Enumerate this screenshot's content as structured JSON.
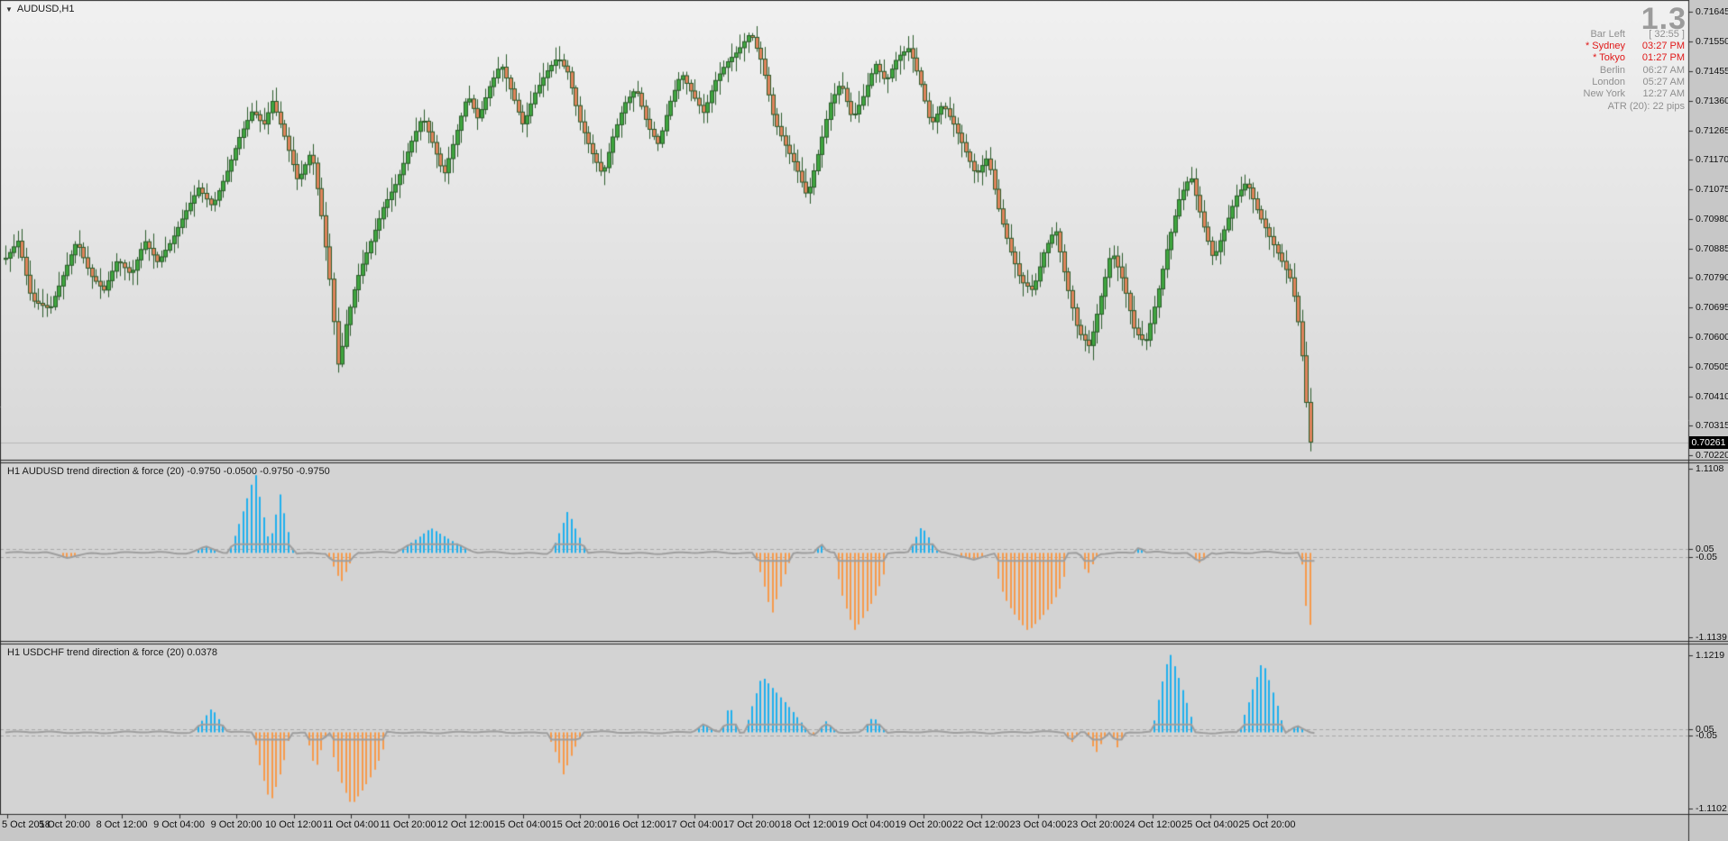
{
  "window": {
    "symbol_label": "AUDUSD,H1",
    "dropdown_icon": "▼"
  },
  "main": {
    "watermark": "1.3"
  },
  "info": {
    "rows": [
      {
        "label": "Bar Left",
        "value": "[ 32:55 ]",
        "highlight": false
      },
      {
        "label": "* Sydney",
        "value": "03:27 PM",
        "highlight": true
      },
      {
        "label": "* Tokyo",
        "value": "01:27 PM",
        "highlight": true
      },
      {
        "label": "Berlin",
        "value": "06:27 AM",
        "highlight": false
      },
      {
        "label": "London",
        "value": "05:27 AM",
        "highlight": false
      },
      {
        "label": "New York",
        "value": "12:27 AM",
        "highlight": false
      }
    ],
    "atr": "ATR (20): 22 pips"
  },
  "time_axis": {
    "labels": [
      "5 Oct 2018",
      "5 Oct 20:00",
      "8 Oct 12:00",
      "9 Oct 04:00",
      "9 Oct 20:00",
      "10 Oct 12:00",
      "11 Oct 04:00",
      "11 Oct 20:00",
      "12 Oct 12:00",
      "15 Oct 04:00",
      "15 Oct 20:00",
      "16 Oct 12:00",
      "17 Oct 04:00",
      "17 Oct 20:00",
      "18 Oct 12:00",
      "19 Oct 04:00",
      "19 Oct 20:00",
      "22 Oct 12:00",
      "23 Oct 04:00",
      "23 Oct 20:00",
      "24 Oct 12:00",
      "25 Oct 04:00",
      "25 Oct 20:00"
    ]
  },
  "colors": {
    "axis_bg": "#c7c7c7",
    "pane_bg": "#d3d3d3",
    "main_bg_top": "#f1f1f1",
    "main_bg_bottom": "#d8d8d8",
    "candle_up": "#3fa53f",
    "candle_down": "#e0845c",
    "candle_outline": "#2b5b2b",
    "hist_pos": "#1fb0ee",
    "hist_neg": "#f79a4b",
    "signal": "#9e9e9e",
    "dashed": "#a8a8a8",
    "text": "#111111",
    "info_text": "#8f8f8f",
    "info_highlight": "#e01818",
    "watermark": "#9b9b9b",
    "border": "#2b2b2b",
    "price_line": "#b8b8b8",
    "badge_bg": "#000000",
    "badge_text": "#ffffff"
  },
  "chart_data": [
    {
      "type": "candlestick",
      "symbol": "AUDUSD",
      "timeframe": "H1",
      "ylim": [
        0.70206,
        0.71684
      ],
      "price_ticks": [
        "0.71645",
        "0.71550",
        "0.71455",
        "0.71360",
        "0.71265",
        "0.71170",
        "0.71075",
        "0.70980",
        "0.70885",
        "0.70790",
        "0.70695",
        "0.70600",
        "0.70505",
        "0.70410",
        "0.70315",
        "0.70220"
      ],
      "current_price": "0.70261",
      "close_path": [
        [
          5,
          0.7085
        ],
        [
          20,
          0.7091
        ],
        [
          35,
          0.7072
        ],
        [
          55,
          0.7069
        ],
        [
          70,
          0.708
        ],
        [
          85,
          0.7091
        ],
        [
          100,
          0.708
        ],
        [
          115,
          0.7075
        ],
        [
          130,
          0.7085
        ],
        [
          145,
          0.708
        ],
        [
          160,
          0.7091
        ],
        [
          175,
          0.7084
        ],
        [
          190,
          0.7091
        ],
        [
          205,
          0.71
        ],
        [
          220,
          0.7108
        ],
        [
          235,
          0.7102
        ],
        [
          250,
          0.7112
        ],
        [
          265,
          0.7124
        ],
        [
          280,
          0.7133
        ],
        [
          292,
          0.7128
        ],
        [
          302,
          0.7136
        ],
        [
          315,
          0.7125
        ],
        [
          330,
          0.711
        ],
        [
          345,
          0.712
        ],
        [
          355,
          0.7102
        ],
        [
          365,
          0.708
        ],
        [
          375,
          0.705
        ],
        [
          382,
          0.7062
        ],
        [
          395,
          0.7078
        ],
        [
          410,
          0.709
        ],
        [
          425,
          0.7102
        ],
        [
          440,
          0.711
        ],
        [
          455,
          0.7122
        ],
        [
          468,
          0.7131
        ],
        [
          480,
          0.7122
        ],
        [
          492,
          0.7112
        ],
        [
          505,
          0.7125
        ],
        [
          518,
          0.7138
        ],
        [
          530,
          0.713
        ],
        [
          542,
          0.714
        ],
        [
          555,
          0.7148
        ],
        [
          568,
          0.7138
        ],
        [
          580,
          0.7128
        ],
        [
          592,
          0.7138
        ],
        [
          605,
          0.7145
        ],
        [
          618,
          0.715
        ],
        [
          630,
          0.7145
        ],
        [
          642,
          0.713
        ],
        [
          655,
          0.712
        ],
        [
          668,
          0.7112
        ],
        [
          680,
          0.7125
        ],
        [
          692,
          0.7135
        ],
        [
          705,
          0.714
        ],
        [
          718,
          0.7128
        ],
        [
          730,
          0.7122
        ],
        [
          742,
          0.7135
        ],
        [
          755,
          0.7145
        ],
        [
          768,
          0.7138
        ],
        [
          780,
          0.7132
        ],
        [
          792,
          0.7142
        ],
        [
          805,
          0.7148
        ],
        [
          818,
          0.7152
        ],
        [
          832,
          0.7158
        ],
        [
          845,
          0.7148
        ],
        [
          858,
          0.713
        ],
        [
          870,
          0.7122
        ],
        [
          882,
          0.7115
        ],
        [
          895,
          0.7105
        ],
        [
          908,
          0.712
        ],
        [
          920,
          0.7135
        ],
        [
          932,
          0.7142
        ],
        [
          945,
          0.713
        ],
        [
          958,
          0.7138
        ],
        [
          970,
          0.7148
        ],
        [
          982,
          0.7142
        ],
        [
          995,
          0.715
        ],
        [
          1008,
          0.7153
        ],
        [
          1020,
          0.7142
        ],
        [
          1032,
          0.7128
        ],
        [
          1045,
          0.7135
        ],
        [
          1058,
          0.7128
        ],
        [
          1070,
          0.712
        ],
        [
          1082,
          0.7112
        ],
        [
          1095,
          0.7118
        ],
        [
          1108,
          0.71
        ],
        [
          1120,
          0.7088
        ],
        [
          1132,
          0.7078
        ],
        [
          1145,
          0.7075
        ],
        [
          1158,
          0.7088
        ],
        [
          1170,
          0.7095
        ],
        [
          1182,
          0.7078
        ],
        [
          1195,
          0.7062
        ],
        [
          1208,
          0.7057
        ],
        [
          1220,
          0.7072
        ],
        [
          1232,
          0.7088
        ],
        [
          1245,
          0.7078
        ],
        [
          1258,
          0.7062
        ],
        [
          1270,
          0.7058
        ],
        [
          1282,
          0.7072
        ],
        [
          1295,
          0.709
        ],
        [
          1308,
          0.7105
        ],
        [
          1320,
          0.7112
        ],
        [
          1332,
          0.7098
        ],
        [
          1345,
          0.7085
        ],
        [
          1358,
          0.7095
        ],
        [
          1370,
          0.7105
        ],
        [
          1382,
          0.711
        ],
        [
          1395,
          0.71
        ],
        [
          1408,
          0.7092
        ],
        [
          1420,
          0.7085
        ],
        [
          1432,
          0.7078
        ],
        [
          1442,
          0.706
        ],
        [
          1448,
          0.704
        ],
        [
          1453,
          0.7026
        ]
      ]
    },
    {
      "type": "histogram",
      "label": "H1 AUDUSD trend direction & force (20) -0.9750 -0.0500 -0.9750 -0.9750",
      "name": "AUDUSD trend direction & force",
      "period": 20,
      "last_values": [
        -0.975,
        -0.05,
        -0.975,
        -0.975
      ],
      "ylim": [
        -1.1139,
        1.1108
      ],
      "thresholds": [
        0.05,
        -0.05
      ],
      "scale_ticks": [
        "1.1108",
        "0.05",
        "-0.05",
        "-1.1139"
      ],
      "bumps": [
        [
          55,
          75,
          100,
          -0.07
        ],
        [
          210,
          228,
          248,
          0.09
        ],
        [
          253,
          283,
          302,
          1.06
        ],
        [
          296,
          311,
          326,
          0.78
        ],
        [
          362,
          378,
          395,
          -0.4
        ],
        [
          438,
          478,
          528,
          0.33
        ],
        [
          610,
          630,
          652,
          0.56
        ],
        [
          836,
          856,
          880,
          -0.82
        ],
        [
          903,
          910,
          919,
          0.13
        ],
        [
          926,
          948,
          984,
          -1.02,
          0.6
        ],
        [
          1006,
          1022,
          1042,
          0.36
        ],
        [
          1048,
          1080,
          1106,
          -0.09
        ],
        [
          1104,
          1140,
          1183,
          -1.03,
          0.45
        ],
        [
          1197,
          1205,
          1219,
          -0.32
        ],
        [
          1257,
          1263,
          1272,
          0.08
        ],
        [
          1316,
          1330,
          1344,
          -0.13
        ],
        [
          1443,
          1452,
          1459,
          -1.06,
          0.8
        ]
      ]
    },
    {
      "type": "histogram",
      "label": "H1 USDCHF trend direction & force (20) 0.0378",
      "name": "USDCHF trend direction & force",
      "period": 20,
      "last_values": [
        0.0378
      ],
      "ylim": [
        -1.1102,
        1.1219
      ],
      "thresholds": [
        0.05,
        -0.05
      ],
      "scale_ticks": [
        "1.1219",
        "0.05",
        "-0.05",
        "-1.1102"
      ],
      "bumps": [
        [
          213,
          235,
          253,
          0.36
        ],
        [
          282,
          300,
          321,
          -1.02,
          0.7
        ],
        [
          338,
          350,
          363,
          -0.56
        ],
        [
          366,
          390,
          428,
          -1.06,
          0.6
        ],
        [
          606,
          625,
          647,
          -0.62
        ],
        [
          768,
          780,
          796,
          0.13
        ],
        [
          800,
          809,
          819,
          0.44
        ],
        [
          826,
          845,
          896,
          0.82,
          0.9
        ],
        [
          896,
          901,
          906,
          -0.06
        ],
        [
          906,
          916,
          929,
          0.16
        ],
        [
          954,
          968,
          984,
          0.23
        ],
        [
          1180,
          1188,
          1197,
          -0.16
        ],
        [
          1205,
          1215,
          1229,
          -0.32
        ],
        [
          1231,
          1239,
          1249,
          -0.22
        ],
        [
          1278,
          1297,
          1325,
          1.17,
          0.85
        ],
        [
          1374,
          1383,
          1392,
          0.4
        ],
        [
          1376,
          1400,
          1424,
          1.04,
          0.85
        ],
        [
          1426,
          1438,
          1453,
          0.1
        ]
      ]
    }
  ]
}
